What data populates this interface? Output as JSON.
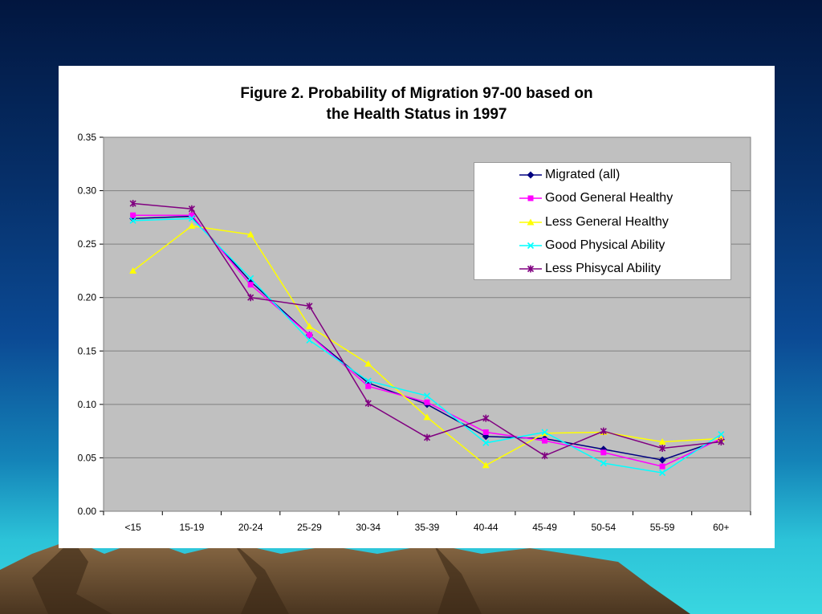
{
  "colors": {
    "plot_background": "#c0c0c0",
    "gridline": "#808080",
    "card_background": "#ffffff"
  },
  "chart_data": {
    "type": "line",
    "title": [
      "Figure 2. Probability of Migration 97-00 based on",
      "the Health Status in 1997"
    ],
    "xlabel": "",
    "ylabel": "",
    "categories": [
      "<15",
      "15-19",
      "20-24",
      "25-29",
      "30-34",
      "35-39",
      "40-44",
      "45-49",
      "50-54",
      "55-59",
      "60+"
    ],
    "ylim": [
      0,
      0.35
    ],
    "yticks": [
      "0.00",
      "0.05",
      "0.10",
      "0.15",
      "0.20",
      "0.25",
      "0.30",
      "0.35"
    ],
    "grid": "horizontal",
    "legend_position": "top-right",
    "series": [
      {
        "name": "Migrated (all)",
        "color": "#000080",
        "marker": "diamond",
        "values": [
          0.274,
          0.276,
          0.215,
          0.165,
          0.12,
          0.1,
          0.07,
          0.068,
          0.058,
          0.048,
          0.067
        ]
      },
      {
        "name": "Good General Healthy",
        "color": "#ff00ff",
        "marker": "square",
        "values": [
          0.277,
          0.277,
          0.212,
          0.165,
          0.117,
          0.102,
          0.074,
          0.066,
          0.055,
          0.042,
          0.068
        ]
      },
      {
        "name": "Less General Healthy",
        "color": "#ffff00",
        "marker": "triangle",
        "values": [
          0.225,
          0.267,
          0.259,
          0.173,
          0.138,
          0.088,
          0.043,
          0.073,
          0.074,
          0.065,
          0.068
        ]
      },
      {
        "name": "Good Physical Ability",
        "color": "#00ffff",
        "marker": "x",
        "values": [
          0.272,
          0.274,
          0.218,
          0.16,
          0.122,
          0.108,
          0.064,
          0.074,
          0.045,
          0.036,
          0.072
        ]
      },
      {
        "name": "Less Phisycal Ability",
        "color": "#800080",
        "marker": "star",
        "values": [
          0.288,
          0.283,
          0.2,
          0.192,
          0.101,
          0.069,
          0.087,
          0.052,
          0.075,
          0.059,
          0.065
        ]
      }
    ]
  }
}
